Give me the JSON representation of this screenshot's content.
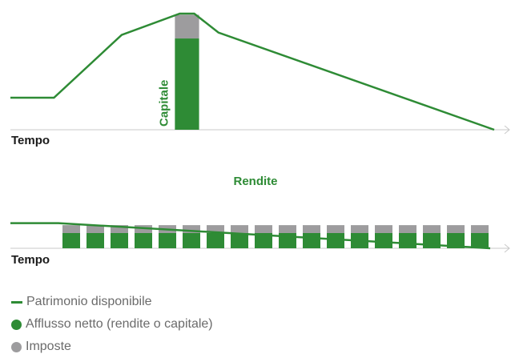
{
  "colors": {
    "green": "#2e8b35",
    "grey": "#9d9c9e",
    "axis": "#c8c8c8",
    "legend_text": "#6b6b6b"
  },
  "chart_data": [
    {
      "type": "line",
      "axis_label": "Tempo",
      "series": [
        {
          "name": "Patrimonio disponibile",
          "color": "#2e8b35",
          "x": [
            0,
            9,
            23,
            35,
            38,
            43,
            100
          ],
          "y": [
            27,
            27,
            80,
            98,
            98,
            82,
            0
          ]
        }
      ],
      "bars": [
        {
          "label": "Capitale",
          "x_start": 34,
          "x_end": 39,
          "net": 77,
          "tax": 20
        }
      ],
      "ylim": [
        0,
        100
      ]
    },
    {
      "type": "bar",
      "title": "Rendite",
      "axis_label": "Tempo",
      "bar_count": 18,
      "bar_values": {
        "net": 1,
        "tax": 0.52
      },
      "series": [
        {
          "name": "Patrimonio disponibile",
          "color": "#2e8b35",
          "x": [
            0,
            10,
            100
          ],
          "y": [
            1.65,
            1.65,
            0
          ]
        }
      ]
    }
  ],
  "legend": [
    {
      "label": "Patrimonio disponibile",
      "kind": "line",
      "color": "#2e8b35"
    },
    {
      "label": "Afflusso netto (rendite o capitale)",
      "kind": "dot",
      "color": "#2e8b35"
    },
    {
      "label": "Imposte",
      "kind": "dot",
      "color": "#9d9c9e"
    }
  ]
}
